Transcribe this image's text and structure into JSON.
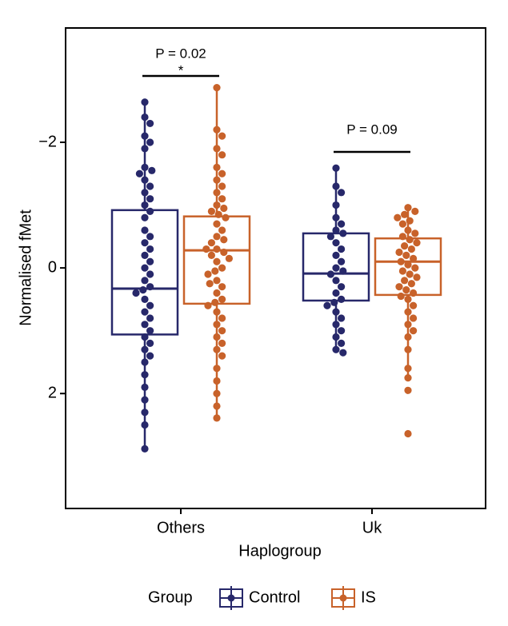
{
  "chart_data": {
    "type": "box",
    "y_label": "Normalised fMet",
    "x_label": "Haplogroup",
    "categories": [
      "Others",
      "Uk"
    ],
    "ylim": [
      -3.82,
      3.83
    ],
    "y_inverted": true,
    "yticks": [
      {
        "value": -2,
        "label": "−2"
      },
      0,
      2
    ],
    "legend_title": "Group",
    "legend": "bottom",
    "annotations": [
      {
        "text": "P = 0.02",
        "star": "*"
      },
      {
        "text": "P = 0.09"
      }
    ],
    "series": [
      {
        "name": "Control",
        "color": "#27286a",
        "boxes": [
          {
            "whisker_low": -2.64,
            "q1": -0.92,
            "median": 0.33,
            "q3": 1.06,
            "whisker_high": 2.88
          },
          {
            "whisker_low": -1.59,
            "q1": -0.55,
            "median": 0.09,
            "q3": 0.52,
            "whisker_high": 1.35
          }
        ],
        "points": [
          [
            -2.64,
            -2.4,
            -2.3,
            -2.1,
            -2.0,
            -1.9,
            -1.6,
            -1.55,
            -1.5,
            -1.4,
            -1.3,
            -1.2,
            -1.1,
            -1.0,
            -0.9,
            -0.8,
            -0.6,
            -0.5,
            -0.4,
            -0.3,
            -0.2,
            -0.1,
            0.0,
            0.1,
            0.2,
            0.3,
            0.35,
            0.4,
            0.5,
            0.6,
            0.7,
            0.8,
            0.9,
            1.0,
            1.1,
            1.2,
            1.3,
            1.4,
            1.5,
            1.7,
            1.9,
            2.1,
            2.3,
            2.5,
            2.88
          ],
          [
            -1.59,
            -1.3,
            -1.2,
            -1.0,
            -0.8,
            -0.7,
            -0.6,
            -0.55,
            -0.5,
            -0.4,
            -0.3,
            -0.2,
            -0.1,
            0.0,
            0.05,
            0.1,
            0.2,
            0.3,
            0.4,
            0.5,
            0.55,
            0.6,
            0.7,
            0.8,
            0.9,
            1.0,
            1.1,
            1.2,
            1.3,
            1.35
          ]
        ]
      },
      {
        "name": "IS",
        "color": "#c8622a",
        "boxes": [
          {
            "whisker_low": -2.87,
            "q1": -0.82,
            "median": -0.28,
            "q3": 0.57,
            "whisker_high": 2.39
          },
          {
            "whisker_low": -0.96,
            "q1": -0.47,
            "median": -0.1,
            "q3": 0.43,
            "whisker_high": 1.75
          }
        ],
        "points": [
          [
            -2.87,
            -2.2,
            -2.1,
            -1.9,
            -1.8,
            -1.6,
            -1.5,
            -1.4,
            -1.3,
            -1.2,
            -1.1,
            -1.0,
            -0.95,
            -0.9,
            -0.85,
            -0.8,
            -0.7,
            -0.6,
            -0.5,
            -0.45,
            -0.4,
            -0.3,
            -0.25,
            -0.2,
            -0.1,
            0.0,
            0.05,
            0.1,
            0.2,
            0.3,
            0.4,
            0.5,
            0.55,
            0.6,
            0.7,
            0.8,
            0.9,
            1.0,
            1.1,
            1.2,
            1.3,
            1.4,
            1.6,
            1.8,
            2.0,
            2.2,
            2.39,
            -0.3,
            -0.15,
            0.25
          ],
          [
            -0.96,
            -0.9,
            -0.85,
            -0.8,
            -0.75,
            -0.7,
            -0.6,
            -0.55,
            -0.5,
            -0.45,
            -0.4,
            -0.35,
            -0.3,
            -0.25,
            -0.2,
            -0.15,
            -0.1,
            -0.05,
            0.0,
            0.05,
            0.1,
            0.15,
            0.2,
            0.25,
            0.3,
            0.35,
            0.4,
            0.45,
            0.5,
            0.6,
            0.7,
            0.8,
            0.9,
            1.0,
            1.1,
            1.3,
            1.6,
            1.75,
            1.95,
            2.64
          ]
        ]
      }
    ]
  }
}
